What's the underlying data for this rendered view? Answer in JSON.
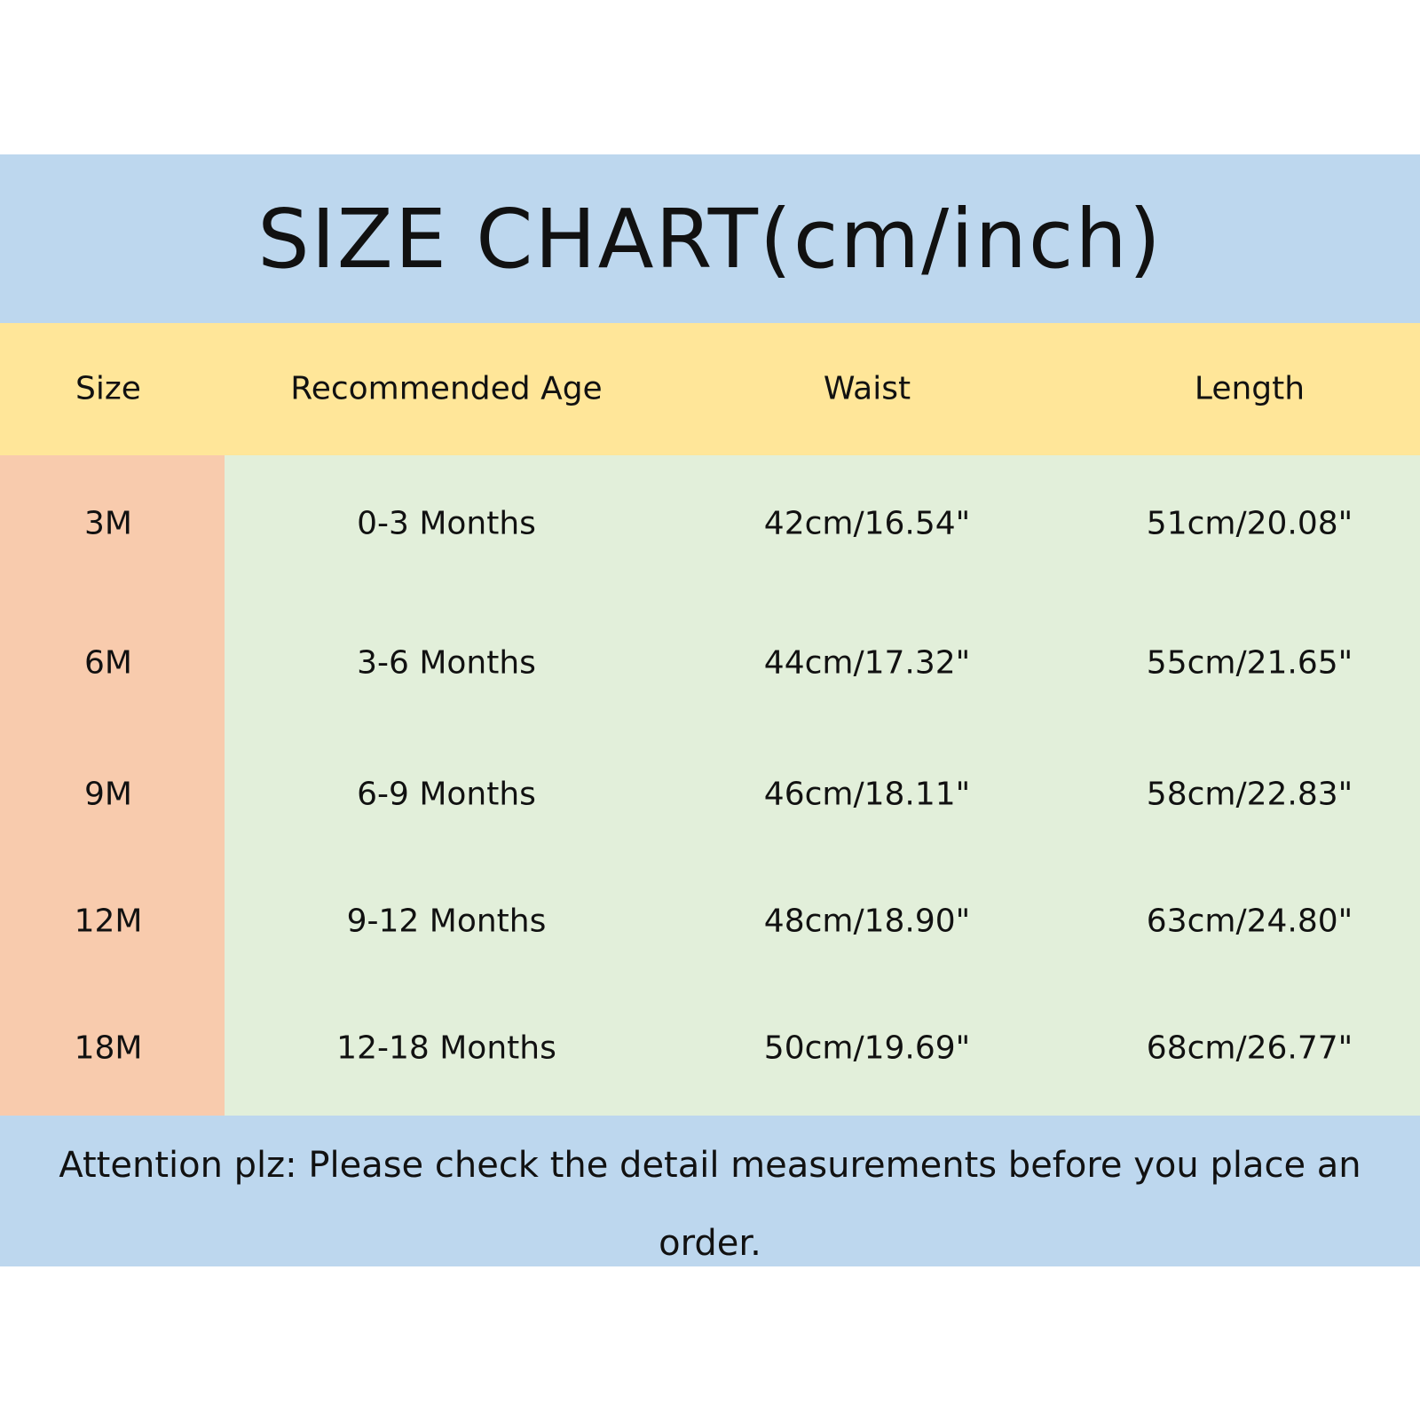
{
  "title": "SIZE CHART(cm/inch)",
  "colors": {
    "title_band": "#bdd7ee",
    "header": "#ffe699",
    "size_column": "#f8cbad",
    "body": "#e2efda"
  },
  "chart_data": {
    "type": "table",
    "title": "SIZE CHART(cm/inch)",
    "columns": [
      "Size",
      "Recommended Age",
      "Waist",
      "Length"
    ],
    "rows": [
      [
        "3M",
        "0-3 Months",
        "42cm/16.54\"",
        "51cm/20.08\""
      ],
      [
        "6M",
        "3-6 Months",
        "44cm/17.32\"",
        "55cm/21.65\""
      ],
      [
        "9M",
        "6-9 Months",
        "46cm/18.11\"",
        "58cm/22.83\""
      ],
      [
        "12M",
        "9-12 Months",
        "48cm/18.90\"",
        "63cm/24.80\""
      ],
      [
        "18M",
        "12-18 Months",
        "50cm/19.69\"",
        "68cm/26.77\""
      ]
    ]
  },
  "note": "Attention plz:  Please check the detail measurements before you place an order."
}
